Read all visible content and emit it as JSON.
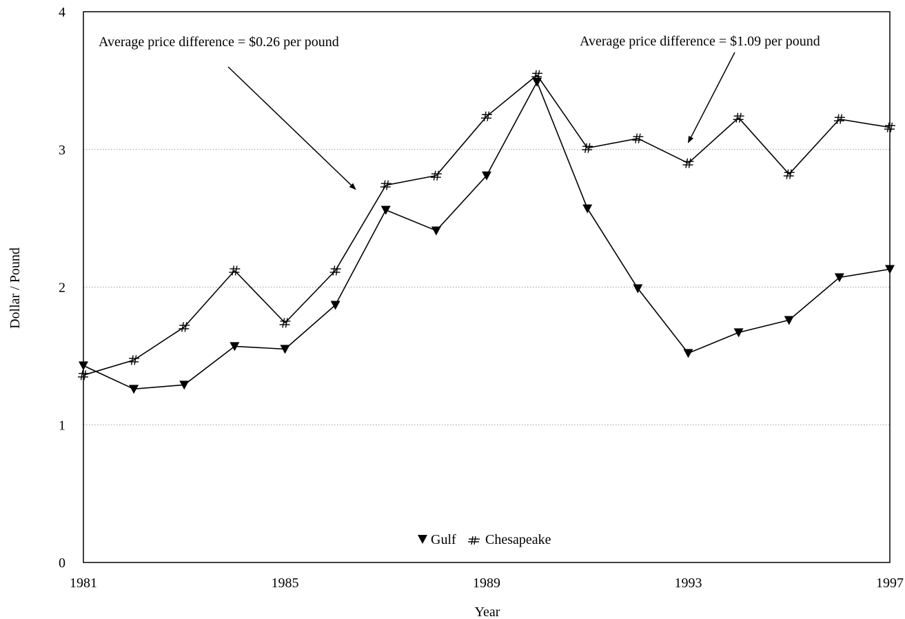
{
  "chart_data": {
    "type": "line",
    "xlabel": "Year",
    "ylabel": "Dollar / Pound",
    "xlim": [
      1981,
      1997
    ],
    "ylim": [
      0,
      4
    ],
    "x_ticks": [
      "1981",
      "1985",
      "1989",
      "1993",
      "1997"
    ],
    "y_ticks": [
      "0",
      "1",
      "2",
      "3",
      "4"
    ],
    "grid": "horizontal dotted",
    "legend_position": "bottom-center",
    "x": [
      1981,
      1982,
      1983,
      1984,
      1985,
      1986,
      1987,
      1988,
      1989,
      1990,
      1991,
      1992,
      1993,
      1994,
      1995,
      1996,
      1997
    ],
    "series": [
      {
        "name": "Gulf",
        "marker": "down-triangle",
        "values": [
          1.43,
          1.26,
          1.29,
          1.57,
          1.55,
          1.87,
          2.56,
          2.41,
          2.81,
          3.49,
          2.57,
          1.99,
          1.52,
          1.67,
          1.76,
          2.07,
          2.13
        ]
      },
      {
        "name": "Chesapeake",
        "marker": "hash",
        "values": [
          1.36,
          1.47,
          1.71,
          2.12,
          1.74,
          2.12,
          2.74,
          2.81,
          3.24,
          3.54,
          3.01,
          3.08,
          2.9,
          3.23,
          2.82,
          3.22,
          3.16
        ]
      }
    ],
    "annotations": [
      {
        "text": "Average price difference = $0.26 per pound",
        "arrow_to": [
          1986.4,
          2.71
        ]
      },
      {
        "text": "Average price difference = $1.09 per pound",
        "arrow_to": [
          1993.0,
          3.05
        ]
      }
    ],
    "colors": {
      "line": "#000000",
      "grid": "#9a9a9a",
      "background": "#ffffff"
    }
  }
}
